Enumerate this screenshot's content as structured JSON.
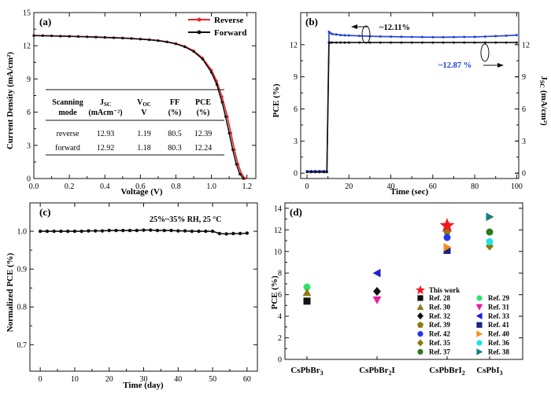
{
  "chart_data": [
    {
      "panel": "(a)",
      "type": "line",
      "xlabel": "Voltage (V)",
      "ylabel": "Current Density (mA/cm²)",
      "xlim": [
        0.0,
        1.25
      ],
      "ylim": [
        0,
        15
      ],
      "xticks": [
        "0.0",
        "0.2",
        "0.4",
        "0.6",
        "0.8",
        "1.0",
        "1.2"
      ],
      "yticks": [
        "0",
        "3",
        "6",
        "9",
        "12",
        "15"
      ],
      "legend_position": "top-right",
      "series": [
        {
          "name": "Reverse",
          "color": "#e8262c",
          "marker": "circle",
          "x": [
            0,
            0.05,
            0.1,
            0.15,
            0.2,
            0.25,
            0.3,
            0.35,
            0.4,
            0.45,
            0.5,
            0.55,
            0.6,
            0.65,
            0.7,
            0.75,
            0.8,
            0.85,
            0.9,
            0.95,
            1.0,
            1.03,
            1.06,
            1.09,
            1.11,
            1.13,
            1.15,
            1.17,
            1.19
          ],
          "y": [
            12.93,
            12.92,
            12.9,
            12.88,
            12.86,
            12.84,
            12.82,
            12.8,
            12.77,
            12.74,
            12.71,
            12.67,
            12.62,
            12.56,
            12.48,
            12.36,
            12.2,
            11.95,
            11.55,
            10.9,
            9.8,
            8.8,
            7.4,
            5.6,
            4.1,
            2.6,
            1.3,
            0.4,
            0
          ]
        },
        {
          "name": "Forward",
          "color": "#111111",
          "marker": "circle",
          "x": [
            0,
            0.05,
            0.1,
            0.15,
            0.2,
            0.25,
            0.3,
            0.35,
            0.4,
            0.45,
            0.5,
            0.55,
            0.6,
            0.65,
            0.7,
            0.75,
            0.8,
            0.85,
            0.9,
            0.95,
            1.0,
            1.03,
            1.06,
            1.08,
            1.1,
            1.12,
            1.14,
            1.16,
            1.18
          ],
          "y": [
            12.92,
            12.91,
            12.89,
            12.87,
            12.85,
            12.83,
            12.81,
            12.78,
            12.75,
            12.72,
            12.69,
            12.65,
            12.6,
            12.54,
            12.46,
            12.34,
            12.17,
            11.9,
            11.48,
            10.8,
            9.6,
            8.5,
            6.9,
            5.6,
            4.1,
            2.6,
            1.3,
            0.4,
            0
          ]
        }
      ],
      "table": {
        "headers": [
          {
            "main": "Scanning",
            "sub": "mode"
          },
          {
            "main": "J",
            "subscript": "SC",
            "sub": "(mAcm⁻²)"
          },
          {
            "main": "V",
            "subscript": "OC",
            "sub": "V"
          },
          {
            "main": "FF",
            "sub": "(%)"
          },
          {
            "main": "PCE",
            "sub": "(%)"
          }
        ],
        "rows": [
          [
            "reverse",
            "12.93",
            "1.19",
            "80.5",
            "12.39"
          ],
          [
            "forward",
            "12.92",
            "1.18",
            "80.3",
            "12.24"
          ]
        ]
      }
    },
    {
      "panel": "(b)",
      "type": "line",
      "xlabel": "Time (sec)",
      "ylabel_left": "PCE (%)",
      "ylabel_right": "J",
      "ylabel_right_sub": "SC",
      "ylabel_right_unit": " (mA/cm²)",
      "xlim": [
        -3,
        101
      ],
      "ylim_left": [
        -0.5,
        15
      ],
      "ylim_right": [
        -0.5,
        15
      ],
      "xticks": [
        "0",
        "20",
        "40",
        "60",
        "80",
        "100"
      ],
      "yticks_left": [
        "0",
        "3",
        "6",
        "9",
        "12"
      ],
      "yticks_right": [
        "0",
        "3",
        "6",
        "9",
        "12"
      ],
      "annotations": [
        "~12.11%",
        "~12.87 %"
      ],
      "series": [
        {
          "name": "PCE",
          "color": "#111111",
          "marker": "circle",
          "axis": "left",
          "x": [
            0,
            2,
            4,
            6,
            8,
            9.5,
            10.5,
            11,
            12,
            14,
            16,
            18,
            20,
            25,
            30,
            35,
            40,
            45,
            50,
            55,
            60,
            65,
            70,
            75,
            80,
            85,
            90,
            95,
            100
          ],
          "y": [
            0.1,
            0.1,
            0.1,
            0.1,
            0.1,
            0.1,
            12.2,
            12.2,
            12.2,
            12.2,
            12.2,
            12.2,
            12.2,
            12.2,
            12.2,
            12.2,
            12.2,
            12.2,
            12.2,
            12.2,
            12.2,
            12.2,
            12.2,
            12.2,
            12.2,
            12.2,
            12.2,
            12.2,
            12.2
          ]
        },
        {
          "name": "JSC",
          "color": "#1f3fd6",
          "marker": "circle",
          "axis": "right",
          "x": [
            0,
            2,
            4,
            6,
            8,
            9.5,
            10.5,
            11,
            12,
            14,
            16,
            18,
            20,
            25,
            30,
            35,
            40,
            45,
            50,
            55,
            60,
            65,
            70,
            75,
            80,
            85,
            90,
            95,
            100
          ],
          "y": [
            0.2,
            0.2,
            0.2,
            0.2,
            0.2,
            0.2,
            13.2,
            13.1,
            13.0,
            12.95,
            12.9,
            12.88,
            12.86,
            12.82,
            12.79,
            12.77,
            12.75,
            12.74,
            12.72,
            12.71,
            12.7,
            12.7,
            12.71,
            12.72,
            12.73,
            12.76,
            12.8,
            12.84,
            12.9
          ]
        }
      ]
    },
    {
      "panel": "(c)",
      "type": "line",
      "xlabel": "Time (day)",
      "ylabel": "Normalized PCE (%)",
      "annotation": "25%~35% RH, 25 °C",
      "xlim": [
        -3,
        63
      ],
      "ylim": [
        0.63,
        1.075
      ],
      "xticks": [
        "0",
        "10",
        "20",
        "30",
        "40",
        "50",
        "60"
      ],
      "yticks": [
        "0.7",
        "0.8",
        "0.9",
        "1.0"
      ],
      "series": [
        {
          "name": "Normalized PCE",
          "color": "#111111",
          "marker": "circle",
          "x": [
            0,
            2,
            4,
            6,
            8,
            10,
            12,
            14,
            16,
            18,
            20,
            22,
            24,
            26,
            28,
            30,
            32,
            34,
            36,
            38,
            40,
            42,
            44,
            46,
            48,
            50,
            52,
            54,
            56,
            58,
            60
          ],
          "y": [
            1.0,
            1.0,
            1.0,
            1.0,
            1.0,
            1.0,
            1.0,
            1.001,
            1.001,
            1.001,
            1.002,
            1.002,
            1.002,
            1.002,
            1.002,
            1.003,
            1.003,
            1.002,
            1.002,
            1.002,
            1.001,
            1.001,
            1.0,
            1.0,
            1.0,
            1.0,
            0.994,
            0.993,
            0.994,
            0.994,
            0.995
          ]
        }
      ]
    },
    {
      "panel": "(d)",
      "type": "scatter",
      "ylabel": "PCE (%)",
      "categories": [
        "CsPbBr3",
        "CsPbBr2I",
        "CsPbBrI2",
        "CsPbI3"
      ],
      "category_display": [
        {
          "base": "CsPbBr",
          "sub": "3",
          "tail": ""
        },
        {
          "base": "CsPbBr",
          "sub": "2",
          "tail": "I"
        },
        {
          "base": "CsPbBrI",
          "sub": "2",
          "tail": ""
        },
        {
          "base": "CsPbI",
          "sub": "3",
          "tail": ""
        }
      ],
      "ylim": [
        0,
        14.5
      ],
      "yticks": [
        "0",
        "2",
        "4",
        "6",
        "8",
        "10",
        "12",
        "14"
      ],
      "legend_position": "bottom-right",
      "series": [
        {
          "name": "This work",
          "marker": "star",
          "color": "#ee1c24",
          "points": [
            [
              2,
              12.39
            ]
          ]
        },
        {
          "name": "Ref. 28",
          "marker": "square",
          "color": "#111111",
          "points": [
            [
              0,
              5.4
            ]
          ]
        },
        {
          "name": "Ref. 29",
          "marker": "circle",
          "color": "#2ee26a",
          "points": [
            [
              0,
              6.7
            ]
          ]
        },
        {
          "name": "Ref. 30",
          "marker": "triangle-up",
          "color": "#8c7a12",
          "points": [
            [
              0,
              6.2
            ]
          ]
        },
        {
          "name": "Ref. 31",
          "marker": "triangle-down",
          "color": "#e81c9c",
          "points": [
            [
              1,
              5.5
            ]
          ]
        },
        {
          "name": "Ref. 32",
          "marker": "diamond",
          "color": "#111111",
          "points": [
            [
              1,
              6.3
            ]
          ]
        },
        {
          "name": "Ref. 33",
          "marker": "triangle-left",
          "color": "#1f1fd6",
          "points": [
            [
              1,
              8.0
            ]
          ]
        },
        {
          "name": "Ref. 39",
          "marker": "pentagon",
          "color": "#8c7a12",
          "points": [
            [
              2,
              11.9
            ]
          ]
        },
        {
          "name": "Ref. 41",
          "marker": "square",
          "color": "#1a237e",
          "points": [
            [
              2,
              10.1
            ]
          ]
        },
        {
          "name": "Ref. 42",
          "marker": "circle",
          "color": "#2436e8",
          "points": [
            [
              2,
              11.3
            ]
          ]
        },
        {
          "name": "Ref. 40",
          "marker": "triangle-right",
          "color": "#f39020",
          "points": [
            [
              2,
              10.4
            ]
          ]
        },
        {
          "name": "Ref. 35",
          "marker": "diamond",
          "color": "#8c7a12",
          "points": [
            [
              3,
              10.5
            ]
          ]
        },
        {
          "name": "Ref. 36",
          "marker": "circle",
          "color": "#19e6e6",
          "points": [
            [
              3,
              10.9
            ]
          ]
        },
        {
          "name": "Ref. 37",
          "marker": "circle",
          "color": "#2a7a1e",
          "points": [
            [
              3,
              11.8
            ]
          ]
        },
        {
          "name": "Ref. 38",
          "marker": "triangle-right",
          "color": "#17807c",
          "points": [
            [
              3,
              13.2
            ]
          ]
        }
      ]
    }
  ]
}
